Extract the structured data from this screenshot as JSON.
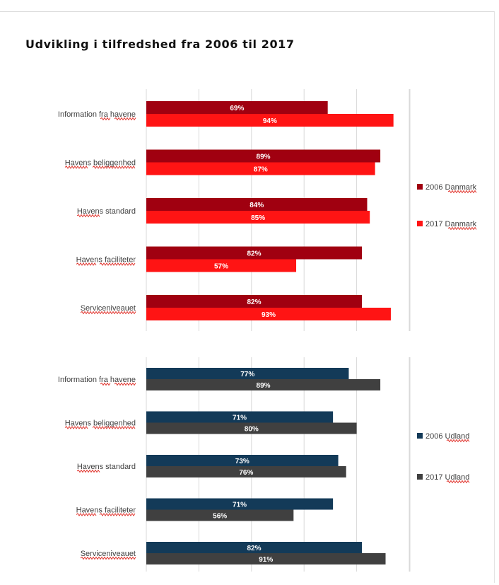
{
  "title": "Udvikling i tilfredshed fra 2006 til 2017",
  "colors": {
    "dk2006": "#a00010",
    "dk2017": "#ff1414",
    "ul2006": "#133a58",
    "ul2017": "#404040",
    "grid": "#d9d9d9"
  },
  "chart_data": [
    {
      "type": "bar",
      "orientation": "horizontal",
      "categories": [
        "Information fra havene",
        "Havens beliggenhed",
        "Havens standard",
        "Havens faciliteter",
        "Serviceniveauet"
      ],
      "series": [
        {
          "name": "2006 Danmark",
          "values": [
            69,
            89,
            84,
            82,
            82
          ],
          "labels": [
            "69%",
            "89%",
            "84%",
            "82%",
            "82%"
          ]
        },
        {
          "name": "2017 Danmark",
          "values": [
            94,
            87,
            85,
            57,
            93
          ],
          "labels": [
            "94%",
            "87%",
            "85%",
            "57%",
            "93%"
          ]
        }
      ],
      "xlim": [
        0,
        100
      ],
      "grid": true,
      "legend": "right"
    },
    {
      "type": "bar",
      "orientation": "horizontal",
      "categories": [
        "Information fra havene",
        "Havens beliggenhed",
        "Havens standard",
        "Havens faciliteter",
        "Serviceniveauet"
      ],
      "series": [
        {
          "name": "2006 Udland",
          "values": [
            77,
            71,
            73,
            71,
            82
          ],
          "labels": [
            "77%",
            "71%",
            "73%",
            "71%",
            "82%"
          ]
        },
        {
          "name": "2017 Udland",
          "values": [
            89,
            80,
            76,
            56,
            91
          ],
          "labels": [
            "89%",
            "80%",
            "76%",
            "56%",
            "91%"
          ]
        }
      ],
      "xlim": [
        0,
        100
      ],
      "grid": true,
      "legend": "right"
    }
  ]
}
